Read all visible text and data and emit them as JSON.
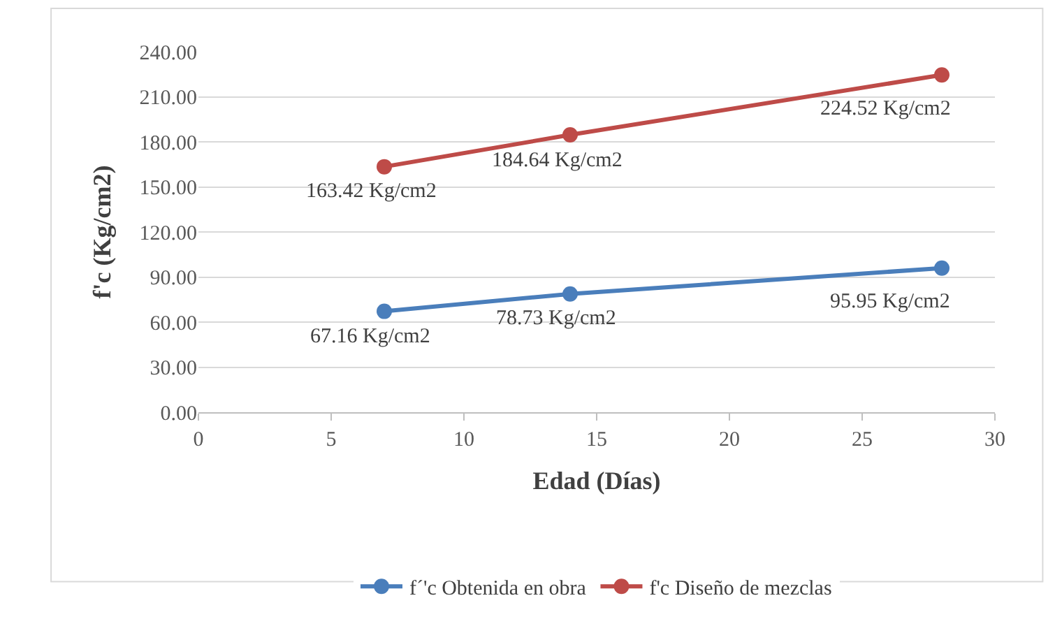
{
  "chart_data": {
    "type": "line",
    "xlabel": "Edad (Días)",
    "ylabel": "f'c (Kg/cm2)",
    "x": [
      7,
      14,
      28
    ],
    "series": [
      {
        "name": "f´'c Obtenida en obra",
        "color": "#4a7ebb",
        "values": [
          67.16,
          78.73,
          95.95
        ],
        "value_labels": [
          "67.16 Kg/cm2",
          "78.73 Kg/cm2",
          "95.95 Kg/cm2"
        ]
      },
      {
        "name": "f'c Diseño de mezclas",
        "color": "#be4b48",
        "values": [
          163.42,
          184.64,
          224.52
        ],
        "value_labels": [
          "163.42 Kg/cm2",
          "184.64 Kg/cm2",
          "224.52 Kg/cm2"
        ]
      }
    ],
    "xlim": [
      0,
      30
    ],
    "xticks": [
      0,
      5,
      10,
      15,
      20,
      25,
      30
    ],
    "ylim": [
      0,
      240
    ],
    "yticks": [
      {
        "value": 0,
        "label": "0.00"
      },
      {
        "value": 30,
        "label": "30.00"
      },
      {
        "value": 60,
        "label": "60.00"
      },
      {
        "value": 90,
        "label": "90.00"
      },
      {
        "value": 120,
        "label": "120.00"
      },
      {
        "value": 150,
        "label": "150.00"
      },
      {
        "value": 180,
        "label": "180.00"
      },
      {
        "value": 210,
        "label": "210.00"
      },
      {
        "value": 240,
        "label": "240.00"
      }
    ],
    "grid": "y",
    "legend": "bottom",
    "marker": "circle",
    "line_style": "solid"
  }
}
